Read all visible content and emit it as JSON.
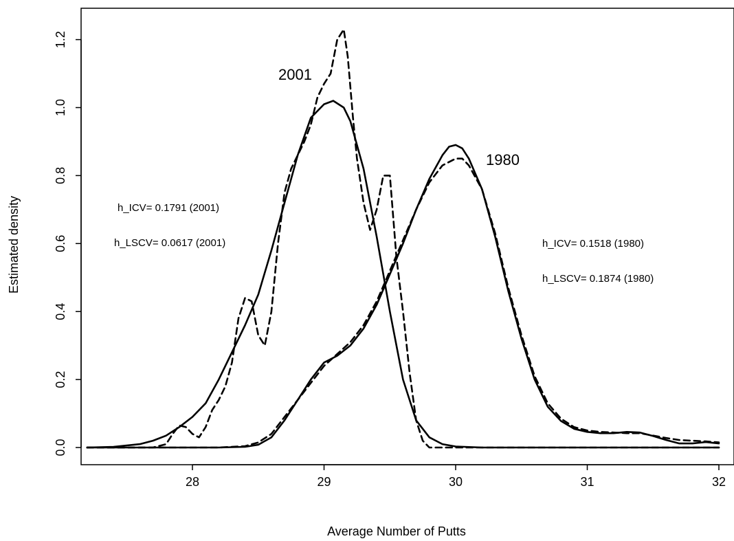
{
  "chart_data": {
    "type": "line",
    "title": "",
    "xlabel": "Average Number of Putts",
    "ylabel": "Estimated density",
    "xlim": [
      27.2,
      32.0
    ],
    "ylim": [
      0.0,
      1.24
    ],
    "xticks": [
      28,
      29,
      30,
      31,
      32
    ],
    "yticks": [
      0.0,
      0.2,
      0.4,
      0.6,
      0.8,
      1.0,
      1.2
    ],
    "xtick_labels": [
      "28",
      "29",
      "30",
      "31",
      "32"
    ],
    "ytick_labels": [
      "0.0",
      "0.2",
      "0.4",
      "0.6",
      "0.8",
      "1.0",
      "1.2"
    ],
    "grid": false,
    "legend": null,
    "series": [
      {
        "style": "solid",
        "x": [
          27.2,
          27.4,
          27.6,
          27.7,
          27.8,
          27.9,
          28.0,
          28.1,
          28.2,
          28.3,
          28.4,
          28.5,
          28.6,
          28.7,
          28.8,
          28.9,
          29.0,
          29.07,
          29.15,
          29.2,
          29.3,
          29.4,
          29.5,
          29.6,
          29.7,
          29.8,
          29.9,
          30.0,
          30.2,
          32.0
        ],
        "y": [
          0.0,
          0.002,
          0.01,
          0.02,
          0.035,
          0.06,
          0.09,
          0.13,
          0.2,
          0.28,
          0.36,
          0.45,
          0.58,
          0.72,
          0.86,
          0.97,
          1.01,
          1.02,
          1.0,
          0.96,
          0.82,
          0.62,
          0.4,
          0.2,
          0.08,
          0.03,
          0.01,
          0.003,
          0.0,
          0.0
        ]
      },
      {
        "style": "dashed",
        "x": [
          27.2,
          27.7,
          27.8,
          27.85,
          27.9,
          27.95,
          28.0,
          28.05,
          28.1,
          28.15,
          28.2,
          28.25,
          28.3,
          28.35,
          28.4,
          28.45,
          28.5,
          28.55,
          28.6,
          28.65,
          28.7,
          28.75,
          28.8,
          28.85,
          28.9,
          28.95,
          29.0,
          29.05,
          29.1,
          29.15,
          29.18,
          29.22,
          29.25,
          29.3,
          29.35,
          29.4,
          29.45,
          29.5,
          29.55,
          29.6,
          29.65,
          29.7,
          29.75,
          29.8,
          30.0,
          32.0
        ],
        "y": [
          0.0,
          0.0,
          0.01,
          0.04,
          0.065,
          0.06,
          0.04,
          0.03,
          0.06,
          0.11,
          0.14,
          0.18,
          0.25,
          0.38,
          0.44,
          0.43,
          0.33,
          0.3,
          0.4,
          0.6,
          0.75,
          0.82,
          0.86,
          0.9,
          0.95,
          1.03,
          1.07,
          1.1,
          1.2,
          1.23,
          1.15,
          0.97,
          0.85,
          0.72,
          0.64,
          0.7,
          0.8,
          0.8,
          0.56,
          0.4,
          0.22,
          0.08,
          0.02,
          0.0,
          0.0,
          0.0
        ]
      },
      {
        "style": "solid",
        "x": [
          27.2,
          28.2,
          28.4,
          28.5,
          28.6,
          28.7,
          28.8,
          28.9,
          29.0,
          29.1,
          29.2,
          29.3,
          29.4,
          29.5,
          29.6,
          29.7,
          29.8,
          29.9,
          29.95,
          30.0,
          30.05,
          30.1,
          30.2,
          30.3,
          30.4,
          30.5,
          30.6,
          30.7,
          30.8,
          30.9,
          31.0,
          31.1,
          31.2,
          31.3,
          31.4,
          31.5,
          31.6,
          31.7,
          31.8,
          31.9,
          32.0
        ],
        "y": [
          0.0,
          0.0,
          0.002,
          0.008,
          0.03,
          0.08,
          0.14,
          0.2,
          0.25,
          0.27,
          0.3,
          0.35,
          0.42,
          0.51,
          0.6,
          0.7,
          0.79,
          0.86,
          0.885,
          0.89,
          0.88,
          0.85,
          0.76,
          0.62,
          0.46,
          0.32,
          0.2,
          0.12,
          0.078,
          0.055,
          0.046,
          0.042,
          0.042,
          0.046,
          0.044,
          0.034,
          0.022,
          0.012,
          0.012,
          0.016,
          0.012
        ]
      },
      {
        "style": "dashed",
        "x": [
          27.2,
          28.2,
          28.4,
          28.5,
          28.6,
          28.7,
          28.8,
          28.9,
          29.0,
          29.1,
          29.2,
          29.3,
          29.4,
          29.5,
          29.6,
          29.7,
          29.8,
          29.9,
          30.0,
          30.05,
          30.1,
          30.2,
          30.3,
          30.4,
          30.5,
          30.6,
          30.7,
          30.8,
          30.9,
          31.0,
          31.1,
          31.2,
          31.3,
          31.4,
          31.5,
          31.6,
          31.7,
          31.8,
          31.9,
          32.0
        ],
        "y": [
          0.0,
          0.0,
          0.004,
          0.015,
          0.04,
          0.09,
          0.14,
          0.19,
          0.24,
          0.275,
          0.31,
          0.36,
          0.43,
          0.52,
          0.61,
          0.7,
          0.78,
          0.83,
          0.85,
          0.85,
          0.83,
          0.76,
          0.63,
          0.47,
          0.33,
          0.21,
          0.13,
          0.085,
          0.06,
          0.05,
          0.046,
          0.044,
          0.042,
          0.042,
          0.035,
          0.028,
          0.022,
          0.02,
          0.018,
          0.015
        ]
      }
    ],
    "annotations": {
      "label_2001": "2001",
      "label_1980": "1980",
      "icv_2001": "h_ICV= 0.1791   (2001)",
      "lscv_2001": "h_LSCV= 0.0617   (2001)",
      "icv_1980": "h_ICV= 0.1518   (1980)",
      "lscv_1980": "h_LSCV= 0.1874   (1980)"
    }
  }
}
